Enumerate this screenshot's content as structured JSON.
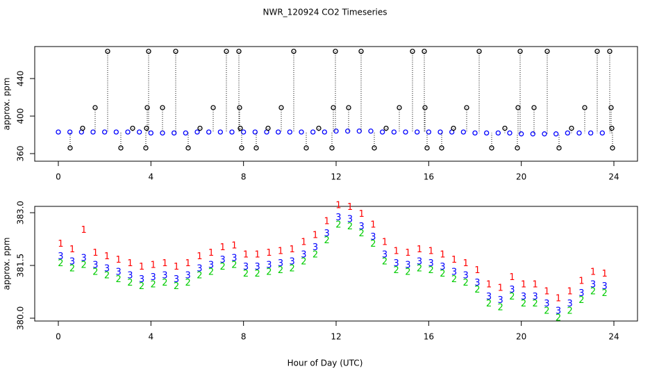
{
  "chart_data": [
    {
      "type": "scatter",
      "title": "NWR_120924  CO2 Timeseries",
      "ylabel": "approx. ppm",
      "xlim": [
        -1.02,
        25.02
      ],
      "ylim": [
        351.9,
        474.1
      ],
      "xticks": [
        0,
        4,
        8,
        12,
        16,
        20,
        24
      ],
      "yticks": [
        360,
        400,
        440
      ],
      "series": [
        {
          "color": "#0000ff",
          "x": [
            0,
            0.5,
            1,
            1.5,
            2,
            2.5,
            3,
            3.5,
            4,
            4.5,
            5,
            5.5,
            6,
            6.5,
            7,
            7.5,
            8,
            8.5,
            9,
            9.5,
            10,
            10.5,
            11,
            11.5,
            12,
            12.5,
            13,
            13.5,
            14,
            14.5,
            15,
            15.5,
            16,
            16.5,
            17,
            17.5,
            18,
            18.5,
            19,
            19.5,
            20,
            20.5,
            21,
            21.5,
            22,
            22.5,
            23,
            23.5
          ],
          "values": [
            383,
            383,
            383,
            383,
            383,
            383,
            383,
            383,
            382,
            382,
            382,
            382,
            383,
            383,
            383,
            383,
            383,
            383,
            383,
            383,
            383,
            383,
            383,
            383,
            384,
            384,
            384,
            384,
            383,
            383,
            383,
            383,
            383,
            383,
            383,
            383,
            382,
            382,
            382,
            382,
            381,
            381,
            381,
            381,
            382,
            382,
            382,
            382
          ]
        },
        {
          "color": "#000000",
          "drop_lines": true,
          "x": [
            0.51,
            1.05,
            1.59,
            2.13,
            2.7,
            3.21,
            3.78,
            3.81,
            3.84,
            3.9,
            4.5,
            5.07,
            5.61,
            6.12,
            6.69,
            7.26,
            7.8,
            7.83,
            7.86,
            7.92,
            8.55,
            9.06,
            9.63,
            10.17,
            10.71,
            11.25,
            11.82,
            11.88,
            11.97,
            12.54,
            13.08,
            13.65,
            14.16,
            14.73,
            15.3,
            15.81,
            15.84,
            15.93,
            16.56,
            17.07,
            17.64,
            18.18,
            18.72,
            19.29,
            19.83,
            19.86,
            19.95,
            20.55,
            21.12,
            21.63,
            22.17,
            22.74,
            23.28,
            23.82,
            23.88,
            23.91,
            23.94
          ],
          "values": [
            366,
            387,
            409,
            469,
            366,
            387,
            366,
            387,
            409,
            469,
            409,
            469,
            366,
            387,
            409,
            469,
            469,
            409,
            387,
            366,
            366,
            387,
            409,
            469,
            366,
            387,
            366,
            409,
            469,
            409,
            469,
            366,
            387,
            409,
            469,
            469,
            409,
            366,
            366,
            387,
            409,
            469,
            366,
            387,
            366,
            409,
            469,
            409,
            469,
            366,
            387,
            409,
            469,
            469,
            409,
            387,
            366
          ]
        }
      ]
    },
    {
      "type": "scatter",
      "ylabel": "approx. ppm",
      "xlabel": "Hour of Day (UTC)",
      "xlim": [
        -1.02,
        25.02
      ],
      "ylim": [
        379.92,
        383.18
      ],
      "xticks": [
        0,
        4,
        8,
        12,
        16,
        20,
        24
      ],
      "yticks": [
        {
          "value": 380,
          "label": "380.0"
        },
        381.5,
        {
          "value": 383,
          "label": "383.0"
        }
      ],
      "x": [
        0.1,
        0.6,
        1.1,
        1.6,
        2.1,
        2.6,
        3.1,
        3.6,
        4.1,
        4.6,
        5.1,
        5.6,
        6.1,
        6.6,
        7.1,
        7.6,
        8.1,
        8.6,
        9.1,
        9.6,
        10.1,
        10.6,
        11.1,
        11.6,
        12.1,
        12.6,
        13.1,
        13.6,
        14.1,
        14.6,
        15.1,
        15.6,
        16.1,
        16.6,
        17.1,
        17.6,
        18.1,
        18.6,
        19.1,
        19.6,
        20.1,
        20.6,
        21.1,
        21.6,
        22.1,
        22.6,
        23.1,
        23.6
      ],
      "series": [
        {
          "name": "1",
          "color": "#ff0000",
          "values": [
            382.1,
            381.95,
            382.5,
            381.85,
            381.75,
            381.65,
            381.55,
            381.45,
            381.5,
            381.55,
            381.45,
            381.55,
            381.75,
            381.85,
            382.0,
            382.05,
            381.8,
            381.8,
            381.85,
            381.9,
            381.95,
            382.15,
            382.35,
            382.75,
            383.2,
            383.15,
            382.95,
            382.65,
            382.15,
            381.9,
            381.85,
            381.95,
            381.9,
            381.8,
            381.65,
            381.55,
            381.35,
            380.95,
            380.85,
            381.15,
            380.95,
            380.95,
            380.75,
            380.55,
            380.75,
            381.05,
            381.3,
            381.25
          ]
        },
        {
          "name": "2",
          "color": "#00cc00",
          "values": [
            381.55,
            381.4,
            381.5,
            381.3,
            381.2,
            381.1,
            381.0,
            380.9,
            380.95,
            381.0,
            380.9,
            381.0,
            381.2,
            381.3,
            381.45,
            381.5,
            381.25,
            381.25,
            381.3,
            381.35,
            381.4,
            381.6,
            381.8,
            382.2,
            382.65,
            382.6,
            382.4,
            382.1,
            381.6,
            381.35,
            381.3,
            381.4,
            381.35,
            381.25,
            381.1,
            381.0,
            380.8,
            380.4,
            380.3,
            380.6,
            380.4,
            380.4,
            380.2,
            380.0,
            380.2,
            380.5,
            380.75,
            380.7
          ]
        },
        {
          "name": "3",
          "color": "#0000ff",
          "values": [
            381.75,
            381.6,
            381.7,
            381.5,
            381.4,
            381.3,
            381.2,
            381.1,
            381.15,
            381.2,
            381.1,
            381.2,
            381.4,
            381.5,
            381.65,
            381.7,
            381.45,
            381.45,
            381.5,
            381.55,
            381.6,
            381.8,
            382.0,
            382.4,
            382.85,
            382.8,
            382.6,
            382.3,
            381.8,
            381.55,
            381.5,
            381.6,
            381.55,
            381.45,
            381.3,
            381.2,
            381.0,
            380.6,
            380.5,
            380.8,
            380.6,
            380.6,
            380.4,
            380.2,
            380.4,
            380.7,
            380.95,
            380.9
          ]
        }
      ]
    }
  ]
}
